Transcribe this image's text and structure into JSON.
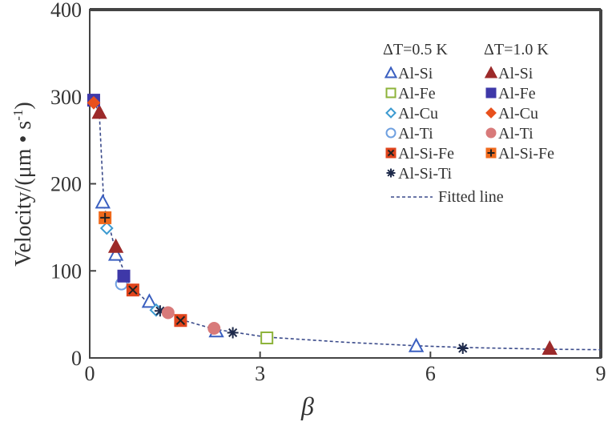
{
  "chart_data": {
    "type": "scatter",
    "title": "",
    "xlabel": "β",
    "ylabel": "Velocity/(μm • s",
    "ylabel_sup": "-1",
    "ylabel_close": ")",
    "xlim": [
      0,
      9
    ],
    "ylim": [
      0,
      400
    ],
    "xticks": [
      0,
      3,
      6,
      9
    ],
    "yticks": [
      0,
      100,
      200,
      300,
      400
    ],
    "grid": false,
    "legend": {
      "placement": "top-right",
      "headers": [
        "ΔT=0.5 K",
        "ΔT=1.0 K"
      ],
      "fitted_label": "Fitted line"
    },
    "series": [
      {
        "name": "Al-Si",
        "group": "ΔT=0.5 K",
        "marker": "triangle-open",
        "color": "#3a5fc0",
        "x": [
          0.23,
          0.46,
          1.05,
          2.23,
          5.75
        ],
        "y": [
          179,
          119,
          65,
          31,
          14
        ]
      },
      {
        "name": "Al-Fe",
        "group": "ΔT=0.5 K",
        "marker": "square-open",
        "color": "#8db33a",
        "x": [
          3.12
        ],
        "y": [
          23
        ]
      },
      {
        "name": "Al-Cu",
        "group": "ΔT=0.5 K",
        "marker": "diamond-open",
        "color": "#3b9ad0",
        "x": [
          0.3,
          1.17
        ],
        "y": [
          149,
          55
        ]
      },
      {
        "name": "Al-Ti",
        "group": "ΔT=0.5 K",
        "marker": "circle-open",
        "color": "#6fa0e0",
        "x": [
          0.56
        ],
        "y": [
          85
        ]
      },
      {
        "name": "Al-Si-Fe",
        "group": "ΔT=0.5 K",
        "marker": "square-x",
        "color": "#e0441c",
        "x": [
          0.76,
          1.6
        ],
        "y": [
          78,
          43
        ]
      },
      {
        "name": "Al-Si-Ti",
        "group": "ΔT=0.5 K",
        "marker": "asterisk",
        "color": "#1e2a4a",
        "x": [
          1.24,
          2.52,
          6.57
        ],
        "y": [
          54,
          29,
          11
        ]
      },
      {
        "name": "Al-Si",
        "group": "ΔT=1.0 K",
        "marker": "triangle-filled",
        "color": "#9c2a2a",
        "x": [
          0.17,
          0.46,
          8.1
        ],
        "y": [
          282,
          128,
          11
        ]
      },
      {
        "name": "Al-Fe",
        "group": "ΔT=1.0 K",
        "marker": "square-filled",
        "color": "#3e38a8",
        "x": [
          0.07,
          0.6
        ],
        "y": [
          296,
          94
        ]
      },
      {
        "name": "Al-Cu",
        "group": "ΔT=1.0 K",
        "marker": "diamond-filled",
        "color": "#e8501c",
        "x": [
          0.07
        ],
        "y": [
          293
        ]
      },
      {
        "name": "Al-Ti",
        "group": "ΔT=1.0 K",
        "marker": "circle-filled",
        "color": "#d87a7a",
        "x": [
          1.38,
          2.19
        ],
        "y": [
          52,
          34
        ]
      },
      {
        "name": "Al-Si-Fe",
        "group": "ΔT=1.0 K",
        "marker": "square-plus",
        "color": "#f06a1c",
        "x": [
          0.27
        ],
        "y": [
          161
        ]
      }
    ],
    "fitted_line": {
      "color": "#3a4a8a",
      "x": [
        0.07,
        0.17,
        0.25,
        0.46,
        0.7,
        1.0,
        1.5,
        2.2,
        3.1,
        4.5,
        5.75,
        6.6,
        8.1,
        9
      ],
      "y": [
        296,
        280,
        175,
        122,
        85,
        65,
        46,
        33,
        24,
        18,
        14,
        12,
        10,
        9.5
      ]
    }
  }
}
